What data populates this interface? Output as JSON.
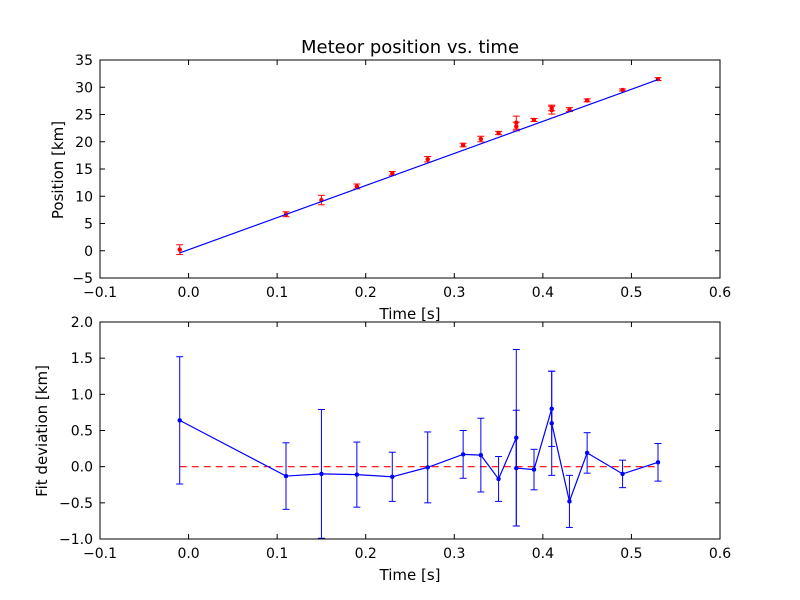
{
  "chart_data": [
    {
      "type": "scatter",
      "title": "Meteor position vs. time",
      "xlabel": "Time [s]",
      "ylabel": "Position [km]",
      "xlim": [
        -0.1,
        0.6
      ],
      "ylim": [
        -5,
        35
      ],
      "xticks": [
        -0.1,
        0.0,
        0.1,
        0.2,
        0.3,
        0.4,
        0.5,
        0.6
      ],
      "yticks": [
        -5,
        0,
        5,
        10,
        15,
        20,
        25,
        30,
        35
      ],
      "xtick_labels": [
        "−0.1",
        "0.0",
        "0.1",
        "0.2",
        "0.3",
        "0.4",
        "0.5",
        "0.6"
      ],
      "ytick_labels": [
        "−5",
        "0",
        "5",
        "10",
        "15",
        "20",
        "25",
        "30",
        "35"
      ],
      "grid": false,
      "series": [
        {
          "kind": "errorbar-points",
          "color": "#ff0000",
          "x": [
            -0.01,
            0.11,
            0.15,
            0.19,
            0.23,
            0.27,
            0.31,
            0.33,
            0.35,
            0.37,
            0.37,
            0.39,
            0.41,
            0.41,
            0.43,
            0.45,
            0.49,
            0.53
          ],
          "y": [
            0.2,
            6.7,
            9.3,
            11.8,
            14.2,
            16.8,
            19.4,
            20.5,
            21.6,
            23.5,
            22.8,
            24.0,
            26.2,
            25.8,
            25.9,
            27.6,
            29.5,
            31.5
          ],
          "yerr": [
            0.9,
            0.45,
            0.87,
            0.45,
            0.34,
            0.49,
            0.33,
            0.51,
            0.3,
            1.2,
            0.8,
            0.28,
            0.52,
            0.72,
            0.36,
            0.27,
            0.19,
            0.26
          ]
        },
        {
          "kind": "fit-line",
          "color": "#0000ff",
          "x": [
            -0.01,
            0.53
          ],
          "y": [
            -0.4,
            31.4
          ]
        }
      ]
    },
    {
      "type": "line",
      "title": "",
      "xlabel": "Time [s]",
      "ylabel": "Fit deviation [km]",
      "xlim": [
        -0.1,
        0.6
      ],
      "ylim": [
        -1.0,
        2.0
      ],
      "xticks": [
        -0.1,
        0.0,
        0.1,
        0.2,
        0.3,
        0.4,
        0.5,
        0.6
      ],
      "yticks": [
        -1.0,
        -0.5,
        0.0,
        0.5,
        1.0,
        1.5,
        2.0
      ],
      "xtick_labels": [
        "−0.1",
        "0.0",
        "0.1",
        "0.2",
        "0.3",
        "0.4",
        "0.5",
        "0.6"
      ],
      "ytick_labels": [
        "−1.0",
        "−0.5",
        "0.0",
        "0.5",
        "1.0",
        "1.5",
        "2.0"
      ],
      "grid": false,
      "reference_line": {
        "y": 0.0,
        "style": "dashed",
        "color": "#ff0000"
      },
      "series": [
        {
          "kind": "errorbar-line",
          "color": "#0000ff",
          "x": [
            -0.01,
            0.11,
            0.15,
            0.19,
            0.23,
            0.27,
            0.31,
            0.33,
            0.35,
            0.37,
            0.37,
            0.39,
            0.41,
            0.41,
            0.43,
            0.45,
            0.49,
            0.53
          ],
          "y": [
            0.64,
            -0.13,
            -0.1,
            -0.11,
            -0.14,
            -0.01,
            0.17,
            0.16,
            -0.17,
            0.4,
            -0.02,
            -0.04,
            0.8,
            0.6,
            -0.48,
            0.19,
            -0.1,
            0.06
          ],
          "yerr": [
            0.88,
            0.46,
            0.89,
            0.45,
            0.34,
            0.49,
            0.33,
            0.51,
            0.31,
            1.22,
            0.8,
            0.28,
            0.52,
            0.72,
            0.36,
            0.28,
            0.19,
            0.26
          ]
        }
      ]
    }
  ]
}
